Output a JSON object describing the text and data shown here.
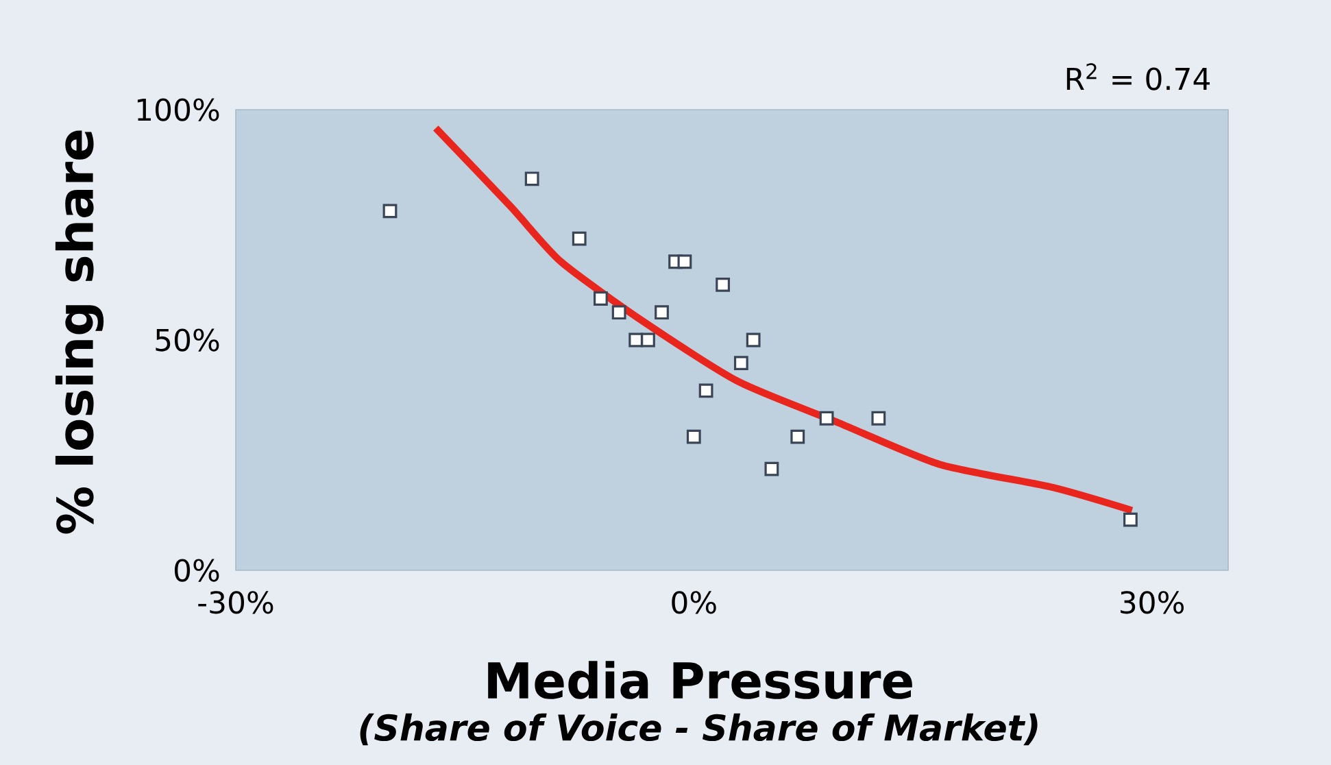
{
  "chart_data": {
    "type": "scatter",
    "xlabel": "Media Pressure",
    "ylabel": "% losing share",
    "annotations": [
      "(Share of Voice - Share of Market)",
      "R$^{2}$ = 0.74"
    ],
    "xlim": [
      -30,
      35
    ],
    "ylim": [
      0,
      100
    ],
    "xticks": [
      {
        "value": -30,
        "label": "-30%"
      },
      {
        "value": 0,
        "label": "0%"
      },
      {
        "value": 30,
        "label": "30%"
      }
    ],
    "yticks": [
      {
        "value": 0,
        "label": "0%"
      },
      {
        "value": 50,
        "label": "50%"
      },
      {
        "value": 100,
        "label": "100%"
      }
    ],
    "series": [
      {
        "marker": "square",
        "color": "#3a4658",
        "x": [
          -19.9,
          -10.6,
          -7.5,
          -6.1,
          -4.9,
          -3.8,
          -3.0,
          -2.1,
          -1.2,
          -0.6,
          1.9,
          3.9,
          3.1,
          0.8,
          0.0,
          6.8,
          5.1,
          8.7,
          12.1,
          28.6
        ],
        "values": [
          78,
          85,
          72,
          59,
          56,
          50,
          50,
          56,
          67,
          67,
          62,
          50,
          45,
          39,
          29,
          29,
          22,
          33,
          33,
          11
        ]
      },
      {
        "type": "line",
        "color": "#e8261e",
        "x": [
          -16.9,
          -12.0,
          -8.7,
          -3.3,
          2.9,
          9.5,
          16.1,
          23.5,
          28.7
        ],
        "values": [
          96,
          79,
          67,
          54,
          41,
          32,
          23,
          18,
          13
        ]
      }
    ]
  }
}
